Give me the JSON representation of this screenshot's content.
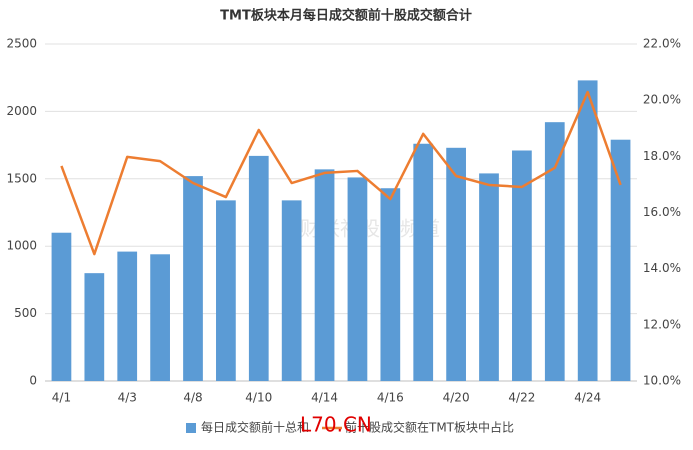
{
  "chart_data": {
    "type": "bar_line",
    "title": "TMT板块本月每日成交额前十股成交额合计",
    "categories": [
      "4/1",
      null,
      "4/3",
      null,
      "4/8",
      null,
      "4/10",
      null,
      "4/14",
      null,
      "4/16",
      null,
      "4/20",
      null,
      "4/22",
      null,
      "4/24",
      null
    ],
    "series": [
      {
        "name": "每日成交额前十总和",
        "type": "bar",
        "color": "#5b9bd5",
        "values": [
          1100,
          800,
          960,
          940,
          1520,
          1340,
          1670,
          1340,
          1570,
          1510,
          1430,
          1760,
          1730,
          1540,
          1710,
          1920,
          2230,
          1790
        ]
      },
      {
        "name": "前十股成交额在TMT板块中占比",
        "type": "line",
        "color": "#ed7d31",
        "axis": "y2",
        "values": [
          17.66,
          14.52,
          17.98,
          17.83,
          17.05,
          16.55,
          18.94,
          17.05,
          17.41,
          17.48,
          16.48,
          18.8,
          17.3,
          16.98,
          16.91,
          17.59,
          20.29,
          16.98
        ]
      }
    ],
    "ylim": [
      0,
      2500
    ],
    "yticks": [
      0,
      500,
      1000,
      1500,
      2000,
      2500
    ],
    "y2lim": [
      10,
      22
    ],
    "y2ticks": [
      {
        "value": 10,
        "label": "10.0%"
      },
      {
        "value": 12,
        "label": "12.0%"
      },
      {
        "value": 14,
        "label": "14.0%"
      },
      {
        "value": 16,
        "label": "16.0%"
      },
      {
        "value": 18,
        "label": "18.0%"
      },
      {
        "value": 20,
        "label": "20.0%"
      },
      {
        "value": 22,
        "label": "22.0%"
      }
    ],
    "grid": true,
    "annotations": [
      "财联社股市频道",
      "L70.CN"
    ]
  }
}
